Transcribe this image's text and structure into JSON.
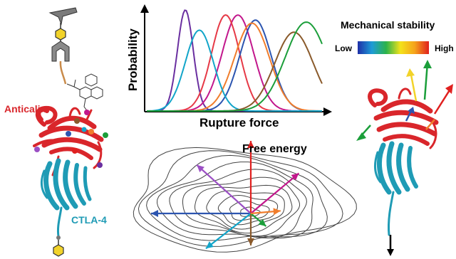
{
  "labels": {
    "anticalin": "Anticalin",
    "ctla4": "CTLA-4",
    "free_energy": "Free energy",
    "mechanical_stability": "Mechanical stability",
    "low": "Low",
    "high": "High"
  },
  "colors": {
    "anticalin": "#d9262b",
    "ctla4": "#1f9bb5",
    "axis": "#000000",
    "contour": "#444444"
  },
  "plot": {
    "ylabel": "Probability",
    "xlabel": "Rupture force",
    "curves": [
      {
        "color": "#6a2fa0",
        "peak": 0.22,
        "width": 0.045,
        "height": 1.0
      },
      {
        "color": "#c2178c",
        "peak": 0.52,
        "width": 0.09,
        "height": 0.95
      },
      {
        "color": "#e63946",
        "peak": 0.45,
        "width": 0.08,
        "height": 0.95
      },
      {
        "color": "#2c55b0",
        "peak": 0.62,
        "width": 0.09,
        "height": 0.9
      },
      {
        "color": "#f07d2c",
        "peak": 0.6,
        "width": 0.1,
        "height": 0.87
      },
      {
        "color": "#12a5c9",
        "peak": 0.3,
        "width": 0.08,
        "height": 0.8
      },
      {
        "color": "#8a5a2b",
        "peak": 0.84,
        "width": 0.11,
        "height": 0.78
      },
      {
        "color": "#1b9e3a",
        "peak": 0.91,
        "width": 0.12,
        "height": 0.88
      }
    ]
  },
  "energy_arrows": [
    {
      "color": "#2c55b0",
      "angle": 180,
      "length": 140
    },
    {
      "color": "#9b4fc4",
      "angle": 138,
      "length": 102
    },
    {
      "color": "#e0201f",
      "angle": 90,
      "length": 102
    },
    {
      "color": "#c2178c",
      "angle": 40,
      "length": 88
    },
    {
      "color": "#12a5c9",
      "angle": 218,
      "length": 80
    },
    {
      "color": "#8a5a2b",
      "angle": 270,
      "length": 45
    },
    {
      "color": "#1b9e3a",
      "angle": 320,
      "length": 28
    },
    {
      "color": "#f07d2c",
      "angle": 5,
      "length": 42
    }
  ],
  "colorbar_stops": [
    "#1f2fa8",
    "#1e9bd6",
    "#2bb34a",
    "#f4e21a",
    "#f5a31b",
    "#e0201f"
  ]
}
